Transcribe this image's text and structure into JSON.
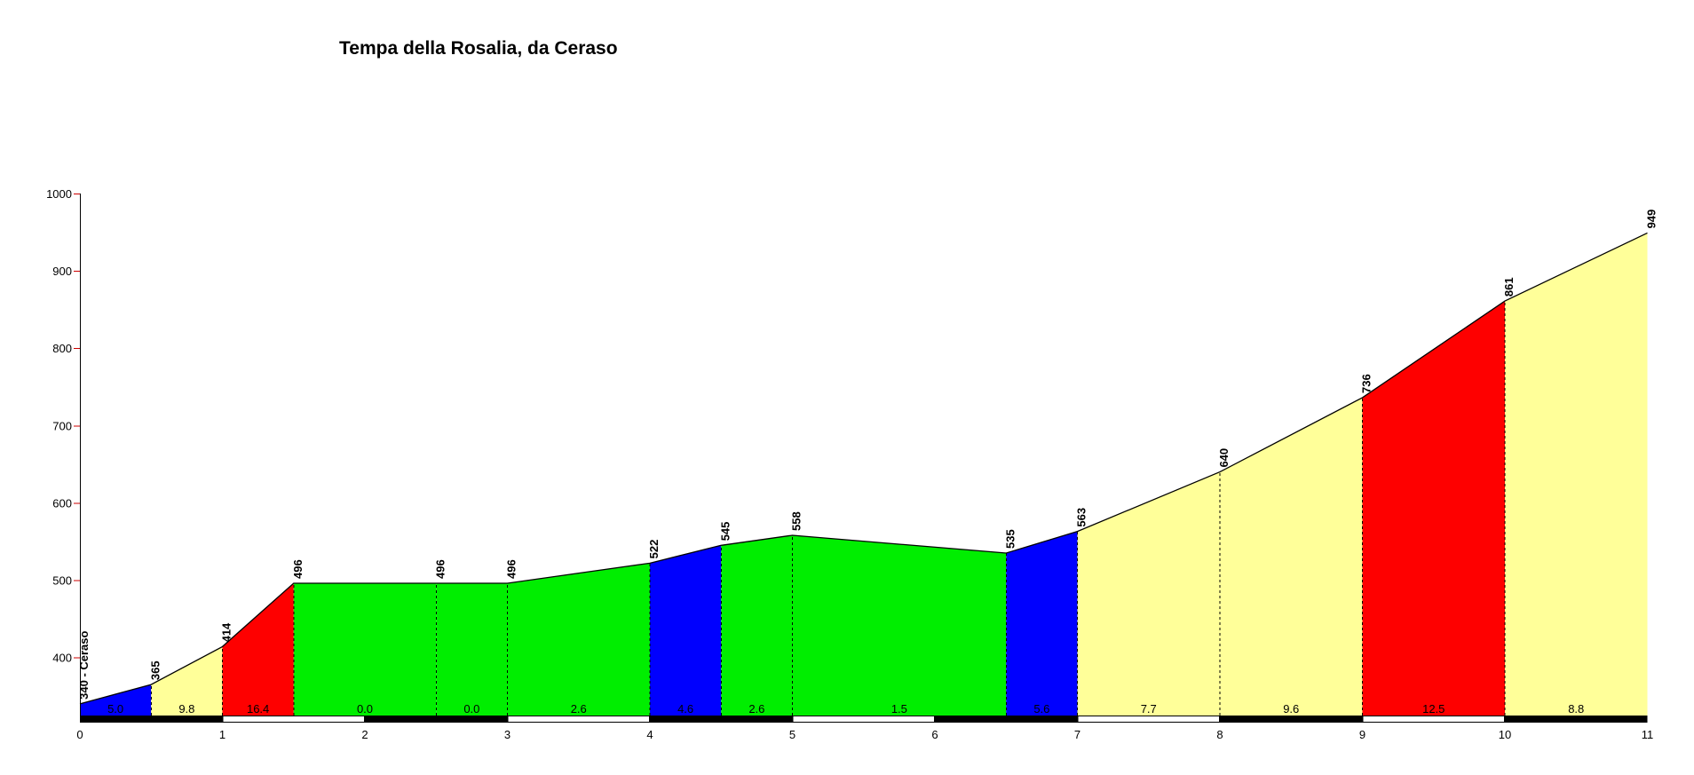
{
  "title": "Tempa della Rosalia, da Ceraso",
  "chart_data": {
    "type": "area",
    "title": "Tempa della Rosalia, da Ceraso",
    "x_unit": "km",
    "y_unit": "m",
    "x_ticks": [
      "0",
      "1",
      "2",
      "3",
      "4",
      "5",
      "6",
      "7",
      "8",
      "9",
      "10",
      "11"
    ],
    "y_ticks": [
      "400",
      "500",
      "600",
      "700",
      "800",
      "900",
      "1000"
    ],
    "xlim": [
      0,
      11
    ],
    "ylim": [
      325,
      1000
    ],
    "grid": false,
    "legend": false,
    "profile_points": [
      {
        "km": 0,
        "elevation": 340,
        "label": "340 - Ceraso"
      },
      {
        "km": 0.5,
        "elevation": 365,
        "label": "365"
      },
      {
        "km": 1,
        "elevation": 414,
        "label": "414"
      },
      {
        "km": 1.5,
        "elevation": 496,
        "label": "496"
      },
      {
        "km": 2.5,
        "elevation": 496,
        "label": "496"
      },
      {
        "km": 3,
        "elevation": 496,
        "label": "496"
      },
      {
        "km": 4,
        "elevation": 522,
        "label": "522"
      },
      {
        "km": 4.5,
        "elevation": 545,
        "label": "545"
      },
      {
        "km": 5,
        "elevation": 558,
        "label": "558"
      },
      {
        "km": 6.5,
        "elevation": 535,
        "label": "535"
      },
      {
        "km": 7,
        "elevation": 563,
        "label": "563"
      },
      {
        "km": 8,
        "elevation": 640,
        "label": "640"
      },
      {
        "km": 9,
        "elevation": 736,
        "label": "736"
      },
      {
        "km": 10,
        "elevation": 861,
        "label": "861"
      },
      {
        "km": 11,
        "elevation": 949,
        "label": "949"
      }
    ],
    "segments": [
      {
        "from_km": 0,
        "to_km": 0.5,
        "gradient": "5.0",
        "color": "blue"
      },
      {
        "from_km": 0.5,
        "to_km": 1,
        "gradient": "9.8",
        "color": "yellow"
      },
      {
        "from_km": 1,
        "to_km": 1.5,
        "gradient": "16.4",
        "color": "red"
      },
      {
        "from_km": 1.5,
        "to_km": 2.5,
        "gradient": "0.0",
        "color": "green"
      },
      {
        "from_km": 2.5,
        "to_km": 3,
        "gradient": "0.0",
        "color": "green"
      },
      {
        "from_km": 3,
        "to_km": 4,
        "gradient": "2.6",
        "color": "green"
      },
      {
        "from_km": 4,
        "to_km": 4.5,
        "gradient": "4.6",
        "color": "blue"
      },
      {
        "from_km": 4.5,
        "to_km": 5,
        "gradient": "2.6",
        "color": "green"
      },
      {
        "from_km": 5,
        "to_km": 6.5,
        "gradient": "1.5",
        "color": "green"
      },
      {
        "from_km": 6.5,
        "to_km": 7,
        "gradient": "5.6",
        "color": "blue"
      },
      {
        "from_km": 7,
        "to_km": 8,
        "gradient": "7.7",
        "color": "yellow"
      },
      {
        "from_km": 8,
        "to_km": 9,
        "gradient": "9.6",
        "color": "yellow"
      },
      {
        "from_km": 9,
        "to_km": 10,
        "gradient": "12.5",
        "color": "red"
      },
      {
        "from_km": 10,
        "to_km": 11,
        "gradient": "8.8",
        "color": "yellow"
      }
    ],
    "colors": {
      "green": "#00ee00",
      "blue": "#0000fe",
      "red": "#fe0000",
      "yellow": "#ffff99",
      "axis_line": "#000000",
      "axis_tick": "#cc0000",
      "profile_line": "#000000"
    },
    "km_strip": {
      "even_fill": "#000000",
      "odd_fill": "#ffffff",
      "border": "#000000"
    }
  }
}
